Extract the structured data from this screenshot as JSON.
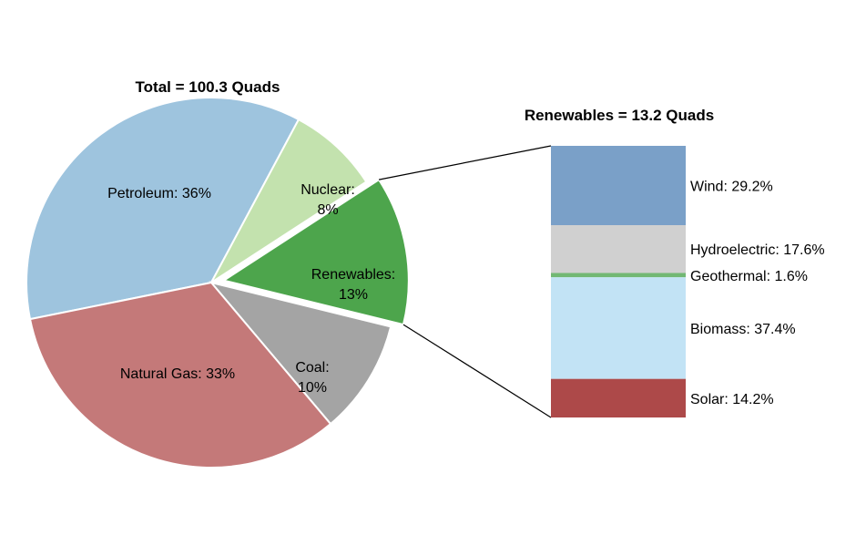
{
  "chart_data": [
    {
      "type": "pie",
      "title": "Total = 100.3 Quads",
      "slices": [
        {
          "label_lines": [
            "Petroleum: 36%"
          ],
          "value": 36,
          "color": "#9ec4de"
        },
        {
          "label_lines": [
            "Nuclear:",
            "8%"
          ],
          "value": 8,
          "color": "#c3e2ae"
        },
        {
          "label_lines": [
            "Renewables:",
            "13%"
          ],
          "value": 13,
          "color": "#4da54c",
          "exploded": true
        },
        {
          "label_lines": [
            "Coal:",
            "10%"
          ],
          "value": 10,
          "color": "#a4a4a4"
        },
        {
          "label_lines": [
            "Natural Gas: 33%"
          ],
          "value": 33,
          "color": "#c47979"
        }
      ]
    },
    {
      "type": "bar",
      "stacked": true,
      "title": "Renewables = 13.2 Quads",
      "segments": [
        {
          "label": "Wind: 29.2%",
          "value": 29.2,
          "color": "#7aa0c8"
        },
        {
          "label": "Hydroelectric: 17.6%",
          "value": 17.6,
          "color": "#d0d0d0"
        },
        {
          "label": "Geothermal: 1.6%",
          "value": 1.6,
          "color": "#72b874"
        },
        {
          "label": "Biomass: 37.4%",
          "value": 37.4,
          "color": "#c2e3f5"
        },
        {
          "label": "Solar: 14.2%",
          "value": 14.2,
          "color": "#ad4949"
        }
      ]
    }
  ]
}
